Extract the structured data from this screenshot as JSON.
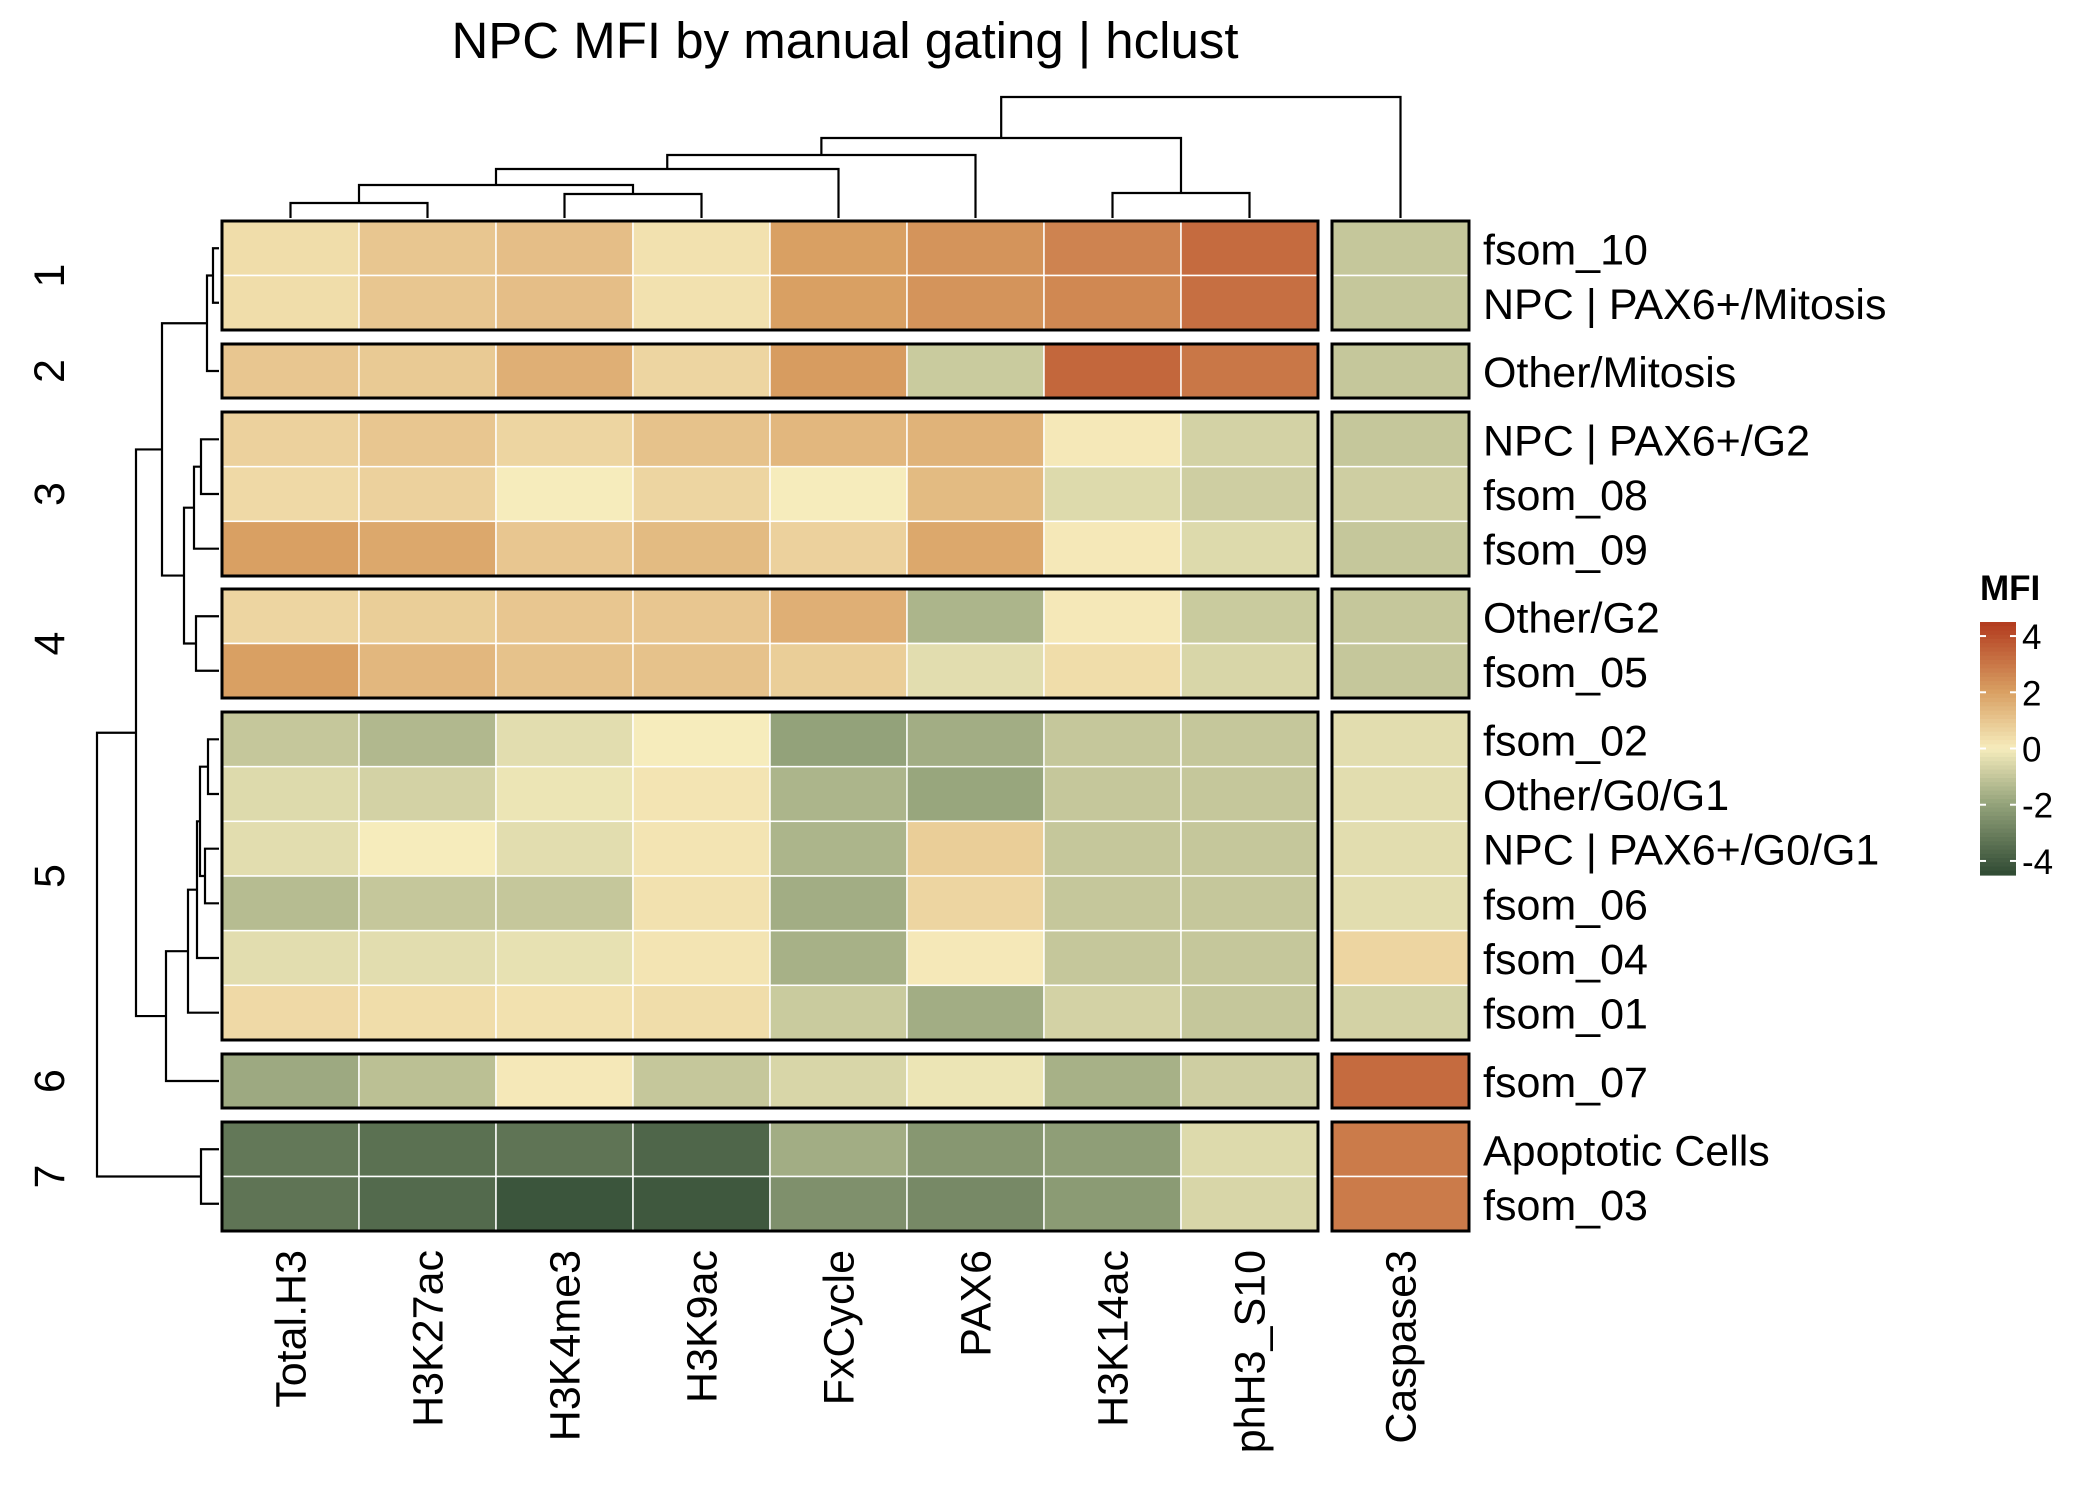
{
  "chart_data": {
    "type": "heatmap",
    "title": "NPC MFI by manual gating | hclust",
    "main_columns": [
      "Total.H3",
      "H3K27ac",
      "H3K4me3",
      "H3K9ac",
      "FxCycle",
      "PAX6",
      "H3K14ac",
      "phH3_S10"
    ],
    "side_columns": [
      "Caspase3"
    ],
    "row_groups": [
      {
        "label": "1",
        "rows": [
          {
            "name": "fsom_10",
            "values": [
              0.4,
              1.0,
              1.2,
              0.3,
              2.0,
              2.3,
              2.7,
              3.3
            ],
            "side": [
              -1.0
            ]
          },
          {
            "name": "NPC | PAX6+/Mitosis",
            "values": [
              0.4,
              1.0,
              1.2,
              0.3,
              2.0,
              2.3,
              2.6,
              3.2
            ],
            "side": [
              -1.0
            ]
          }
        ]
      },
      {
        "label": "2",
        "rows": [
          {
            "name": "Other/Mitosis",
            "values": [
              1.0,
              0.9,
              1.6,
              0.6,
              2.1,
              -0.9,
              3.4,
              3.0
            ],
            "side": [
              -1.0
            ]
          }
        ]
      },
      {
        "label": "3",
        "rows": [
          {
            "name": "NPC | PAX6+/G2",
            "values": [
              0.7,
              1.0,
              0.6,
              1.1,
              1.4,
              1.5,
              0.1,
              -0.7
            ],
            "side": [
              -1.0
            ]
          },
          {
            "name": "fsom_08",
            "values": [
              0.5,
              0.7,
              0.0,
              0.6,
              0.0,
              1.3,
              -0.5,
              -0.8
            ],
            "side": [
              -0.8
            ]
          },
          {
            "name": "fsom_09",
            "values": [
              2.0,
              1.8,
              1.0,
              1.3,
              0.7,
              1.8,
              0.1,
              -0.5
            ],
            "side": [
              -1.0
            ]
          }
        ]
      },
      {
        "label": "4",
        "rows": [
          {
            "name": "Other/G2",
            "values": [
              0.6,
              0.8,
              1.0,
              1.0,
              1.6,
              -1.5,
              0.1,
              -0.9
            ],
            "side": [
              -1.0
            ]
          },
          {
            "name": "fsom_05",
            "values": [
              2.0,
              1.4,
              1.1,
              1.1,
              0.8,
              -0.4,
              0.4,
              -0.6
            ],
            "side": [
              -1.0
            ]
          }
        ]
      },
      {
        "label": "5",
        "rows": [
          {
            "name": "fsom_02",
            "values": [
              -1.0,
              -1.4,
              -0.4,
              0.0,
              -2.0,
              -1.7,
              -1.0,
              -1.0
            ],
            "side": [
              -0.4
            ]
          },
          {
            "name": "Other/G0/G1",
            "values": [
              -0.5,
              -0.7,
              -0.2,
              0.2,
              -1.5,
              -1.9,
              -1.0,
              -1.0
            ],
            "side": [
              -0.4
            ]
          },
          {
            "name": "NPC | PAX6+/G0/G1",
            "values": [
              -0.4,
              0.0,
              -0.4,
              0.2,
              -1.5,
              0.8,
              -1.0,
              -1.0
            ],
            "side": [
              -0.4
            ]
          },
          {
            "name": "fsom_06",
            "values": [
              -1.3,
              -1.0,
              -1.0,
              0.3,
              -1.7,
              0.6,
              -1.0,
              -1.0
            ],
            "side": [
              -0.4
            ]
          },
          {
            "name": "fsom_04",
            "values": [
              -0.4,
              -0.4,
              -0.3,
              0.2,
              -1.6,
              0.1,
              -1.0,
              -1.0
            ],
            "side": [
              0.6
            ]
          },
          {
            "name": "fsom_01",
            "values": [
              0.5,
              0.4,
              0.3,
              0.4,
              -0.9,
              -1.7,
              -0.7,
              -1.0
            ],
            "side": [
              -0.7
            ]
          }
        ]
      },
      {
        "label": "6",
        "rows": [
          {
            "name": "fsom_07",
            "values": [
              -1.8,
              -1.2,
              0.1,
              -1.0,
              -0.6,
              -0.2,
              -1.6,
              -0.8
            ],
            "side": [
              3.3
            ]
          }
        ]
      },
      {
        "label": "7",
        "rows": [
          {
            "name": "Apoptotic Cells",
            "values": [
              -3.2,
              -3.4,
              -3.3,
              -3.7,
              -1.7,
              -2.3,
              -2.1,
              -0.5
            ],
            "side": [
              2.9
            ]
          },
          {
            "name": "fsom_03",
            "values": [
              -3.3,
              -3.6,
              -4.2,
              -4.1,
              -2.5,
              -2.7,
              -2.2,
              -0.6
            ],
            "side": [
              2.9
            ]
          }
        ]
      }
    ],
    "legend": {
      "title": "MFI",
      "ticks": [
        4,
        2,
        0,
        -2,
        -4
      ],
      "range": [
        -4.5,
        4.5
      ],
      "placement": "right"
    },
    "colors": {
      "high": "#b23a1e",
      "mid_high": "#d9a063",
      "mid": "#f6ecbc",
      "mid_low": "#93a27a",
      "low": "#2f4a33"
    }
  }
}
